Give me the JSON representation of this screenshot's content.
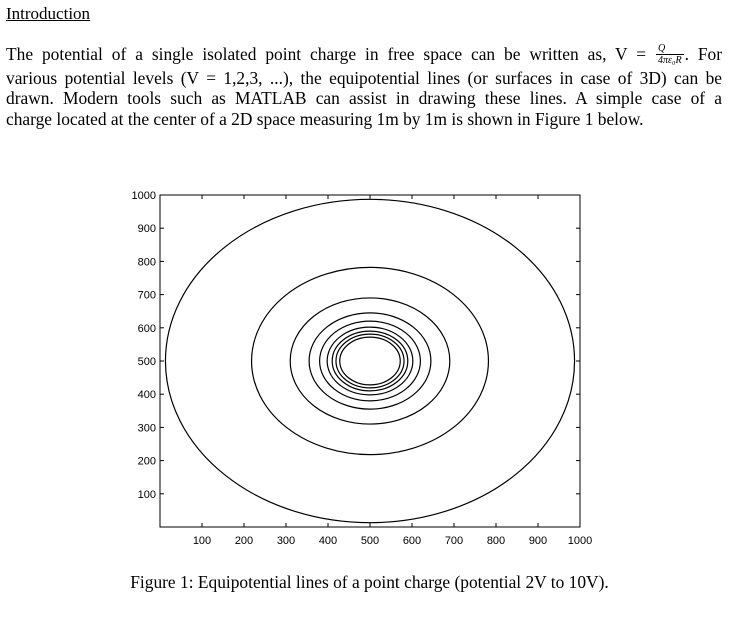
{
  "heading": "Introduction",
  "paragraph": {
    "line1_pre": "The potential of a single isolated point charge in free space can be written as, V =",
    "formula_numerator": "Q",
    "formula_denominator": "4πε₀R",
    "line1_post": ". For",
    "line2": "various potential levels (V = 1,2,3, ...), the equipotential lines (or surfaces in case of 3D) can be",
    "line3": "drawn. Modern tools such as MATLAB can assist in drawing these lines. A simple case of a",
    "line4": "charge located at the center of a 2D space measuring 1m by 1m is shown in Figure 1 below."
  },
  "caption": "Figure 1: Equipotential lines of a point charge (potential 2V to 10V).",
  "chart_data": {
    "type": "contour",
    "x_ticks": [
      100,
      200,
      300,
      400,
      500,
      600,
      700,
      800,
      900,
      1000
    ],
    "y_ticks": [
      100,
      200,
      300,
      400,
      500,
      600,
      700,
      800,
      900,
      1000
    ],
    "xlim": [
      0,
      1000
    ],
    "ylim": [
      0,
      1000
    ],
    "center": [
      500,
      500
    ],
    "contour_radii": [
      487,
      282,
      190,
      145,
      120,
      102,
      90,
      81,
      72
    ],
    "line_color": "#000000"
  }
}
